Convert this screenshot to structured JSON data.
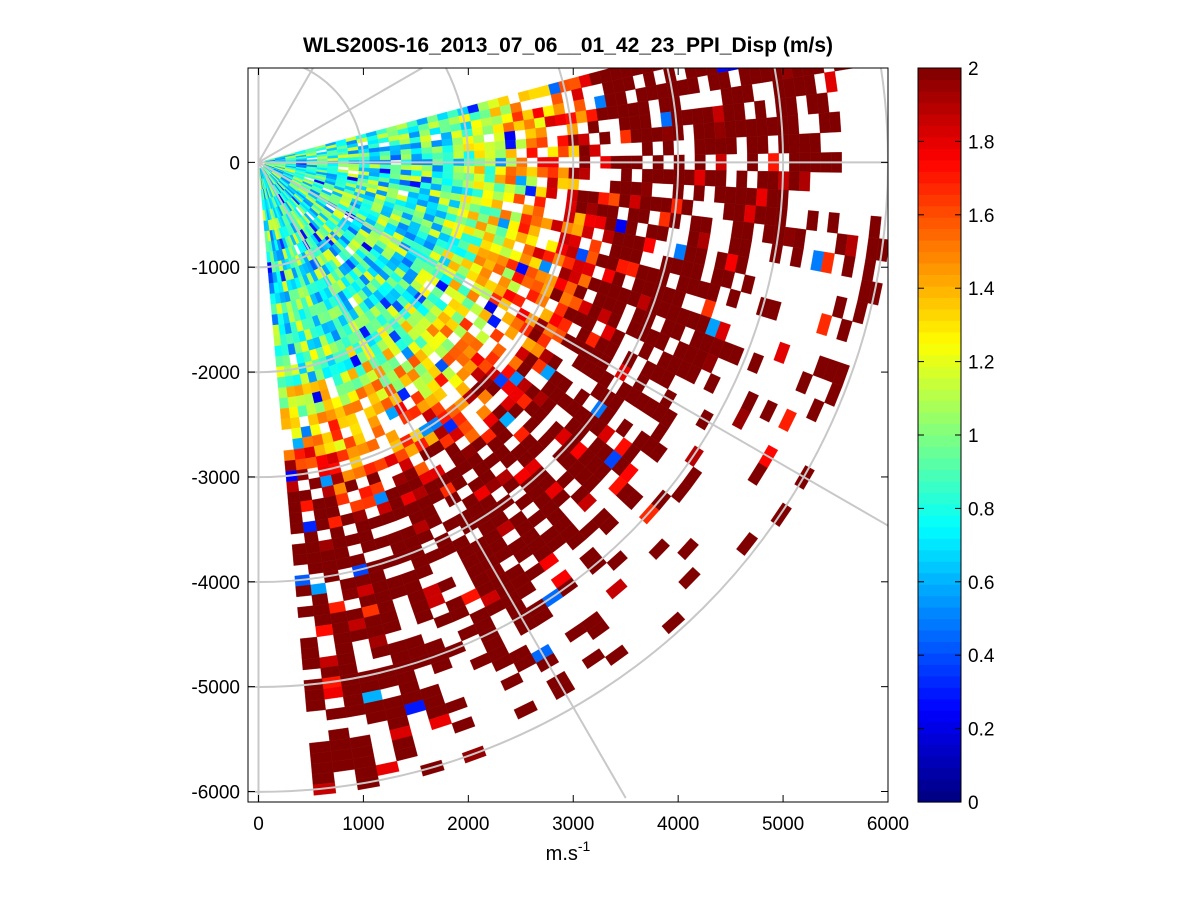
{
  "chart_data": {
    "type": "heatmap",
    "subtype": "ppi-polar-scan",
    "title": "WLS200S-16_2013_07_06__01_42_23_PPI_Disp (m/s)",
    "xlabel": "m.s",
    "xlabel_superscript": "-1",
    "ylabel": "",
    "xlim": [
      -100,
      6000
    ],
    "ylim": [
      -6100,
      900
    ],
    "xticks": [
      0,
      1000,
      2000,
      3000,
      4000,
      5000,
      6000
    ],
    "yticks": [
      0,
      -1000,
      -2000,
      -3000,
      -4000,
      -5000,
      -6000
    ],
    "xtick_labels": [
      "0",
      "1000",
      "2000",
      "3000",
      "4000",
      "5000",
      "6000"
    ],
    "ytick_labels": [
      "0",
      "-1000",
      "-2000",
      "-3000",
      "-4000",
      "-5000",
      "-6000"
    ],
    "scan": {
      "azimuth_start_deg": 15,
      "azimuth_end_deg": -85,
      "range_max_m": 6000,
      "range_gate_m": 100,
      "azimuth_step_deg": 2
    },
    "polar_grid": {
      "range_rings_m": [
        1000,
        2000,
        3000,
        4000,
        5000,
        6000
      ],
      "radial_angles_deg": [
        90,
        60,
        30,
        0,
        -30,
        -60,
        -90
      ]
    },
    "colorbar": {
      "colormap": "jet",
      "min": 0,
      "max": 2,
      "ticks": [
        0,
        0.2,
        0.4,
        0.6,
        0.8,
        1,
        1.2,
        1.4,
        1.6,
        1.8,
        2
      ],
      "tick_labels": [
        "0",
        "0.2",
        "0.4",
        "0.6",
        "0.8",
        "1",
        "1.2",
        "1.4",
        "1.6",
        "1.8",
        "2"
      ]
    },
    "value_field": {
      "description": "Doppler velocity dispersion (m/s) per range gate; values grow with range",
      "near_range_mean": 0.85,
      "far_range_mean": 2.0,
      "transition_range_m": [
        1800,
        3500
      ],
      "data_coverage_limit_m": [
        3000,
        6000
      ],
      "colors": {
        "grid": "#c8c8c8",
        "axes": "#000000",
        "background": "#ffffff"
      }
    }
  }
}
